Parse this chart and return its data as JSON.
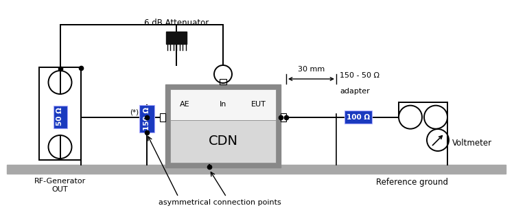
{
  "bg_color": "#ffffff",
  "ground_color": "#a8a8a8",
  "cdn_outer_color": "#888888",
  "cdn_inner_color": "#d8d8d8",
  "cdn_inner_top": "#f0f0f0",
  "blue_color": "#1a3abf",
  "black": "#000000",
  "white": "#ffffff",
  "dark": "#111111",
  "labels": {
    "attenuator": "6 dB Attenuator",
    "rf_gen_1": "RF-Generator",
    "rf_gen_2": "OUT",
    "ref_ground": "Reference ground",
    "asymm": "asymmetrical connection points",
    "cdn": "CDN",
    "ae": "AE",
    "ln": "In",
    "eut": "EUT",
    "voltmeter": "Voltmeter",
    "star": "(*)",
    "res_50": "50 Ω",
    "res_150": "150 Ω",
    "res_100": "100 Ω",
    "dist_30": "30 mm",
    "adapter_1": "150 - 50 Ω",
    "adapter_2": "adapter"
  }
}
